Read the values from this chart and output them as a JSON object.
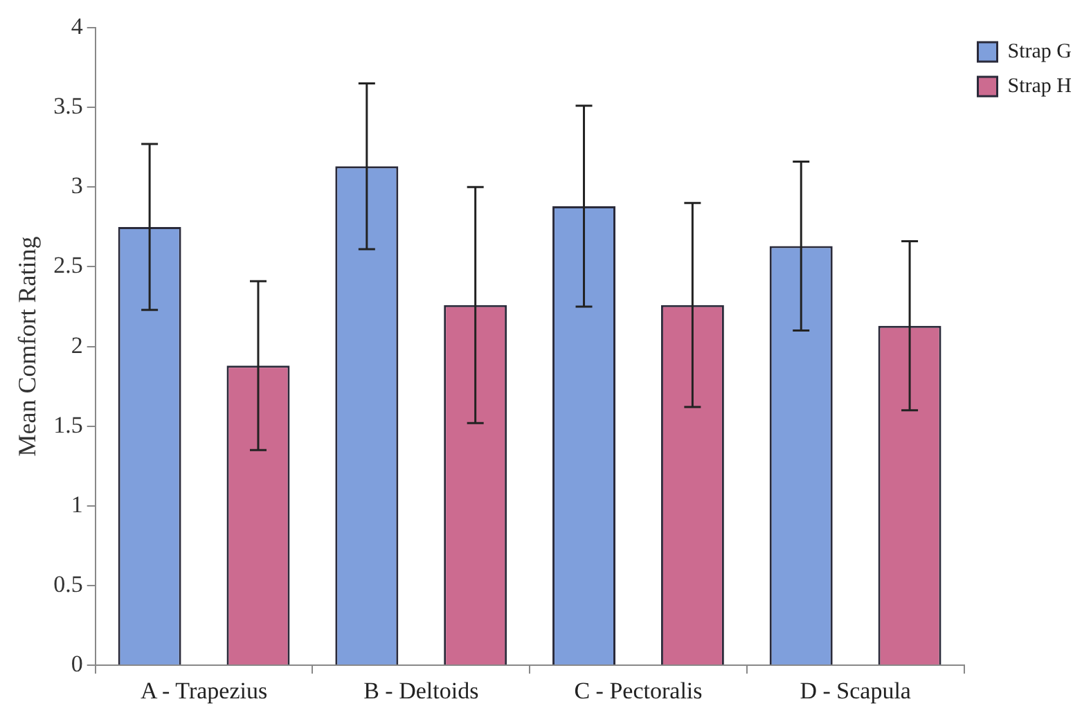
{
  "chart_data": {
    "type": "bar",
    "ylabel": "Mean Comfort Rating",
    "categories": [
      "A - Trapezius",
      "B - Deltoids",
      "C - Pectoralis",
      "D - Scapula"
    ],
    "series": [
      {
        "name": "Strap G",
        "color": "#7f9fdc",
        "values": [
          2.75,
          3.13,
          2.88,
          2.63
        ],
        "errors": [
          0.52,
          0.52,
          0.63,
          0.53
        ]
      },
      {
        "name": "Strap H",
        "color": "#cc6b90",
        "values": [
          1.88,
          2.26,
          2.26,
          2.13
        ],
        "errors": [
          0.53,
          0.74,
          0.64,
          0.53
        ]
      }
    ],
    "ylim": [
      0,
      4
    ],
    "yticks": [
      0,
      0.5,
      1,
      1.5,
      2,
      2.5,
      3,
      3.5,
      4
    ],
    "grid": false,
    "legend": "top right"
  }
}
